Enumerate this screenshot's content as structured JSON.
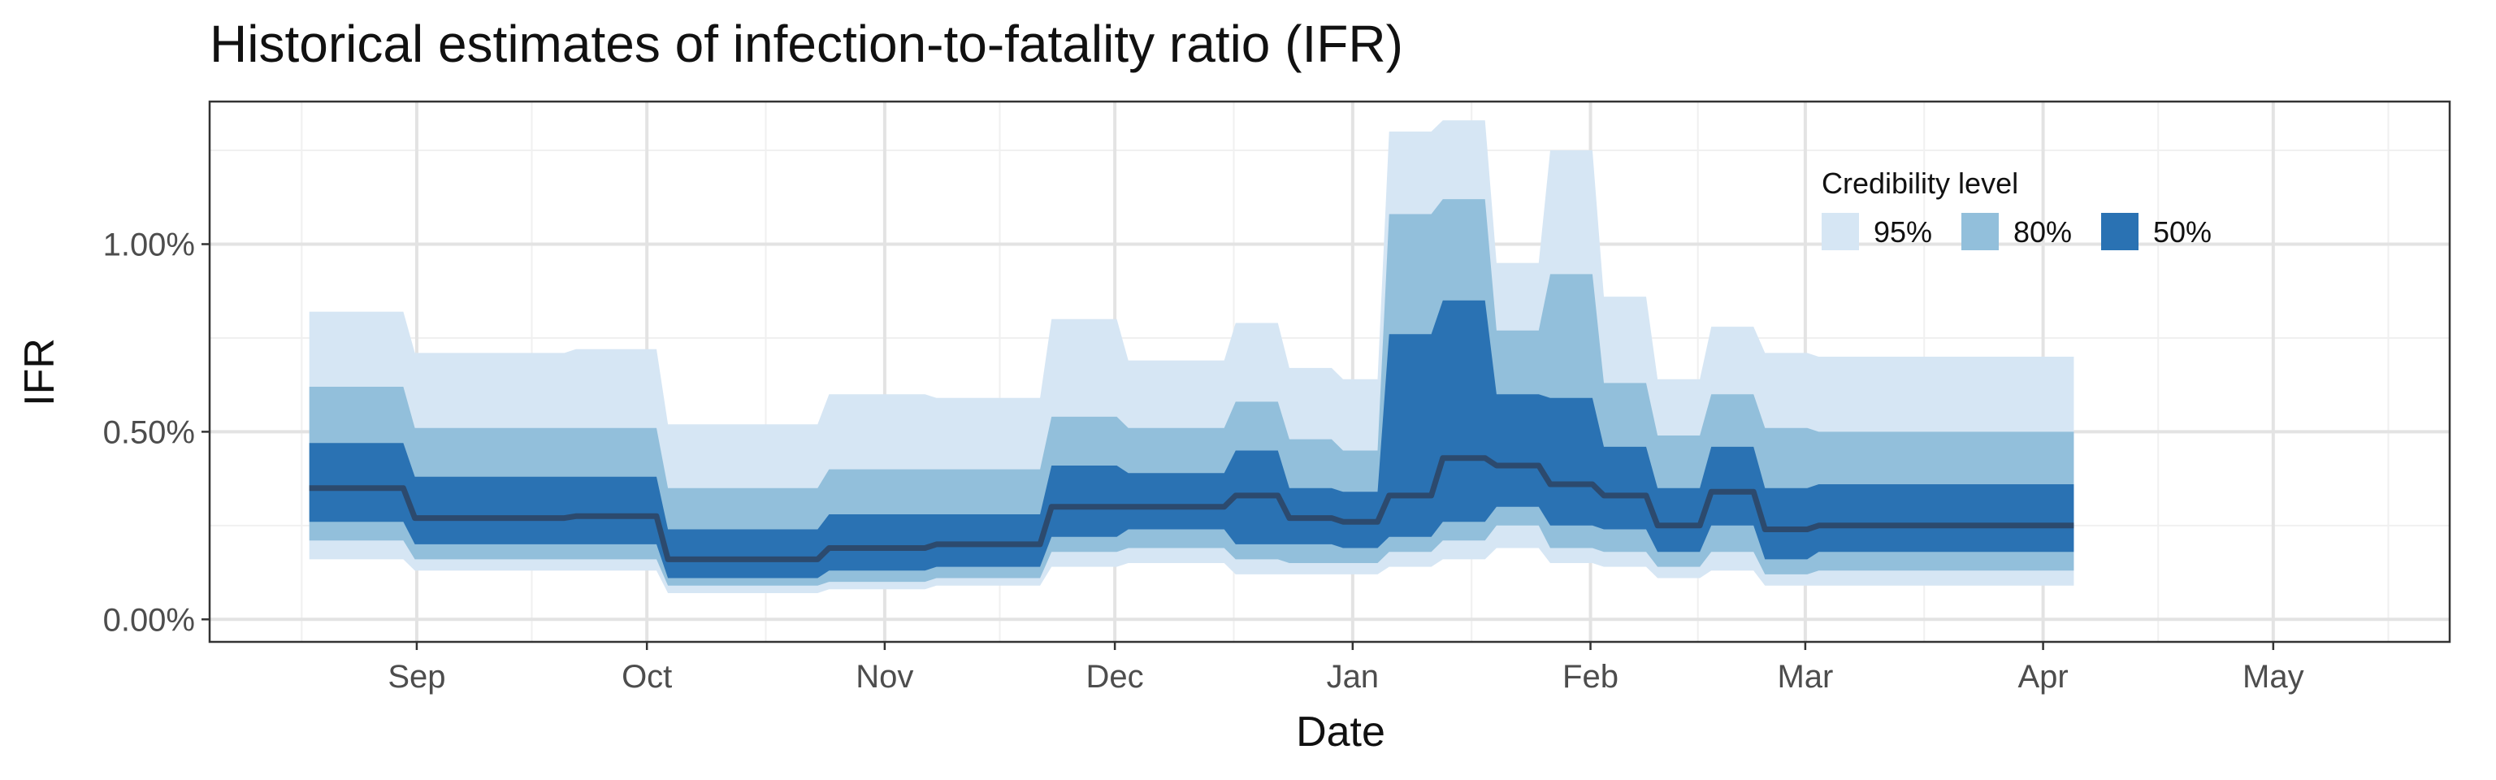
{
  "chart_data": {
    "type": "area",
    "title": "Historical estimates of infection-to-fatality ratio (IFR)",
    "xlabel": "Date",
    "ylabel": "IFR",
    "x_range": [
      "2020-08-05",
      "2021-05-24"
    ],
    "ylim": [
      -0.0006,
      0.0138
    ],
    "y_ticks": [
      {
        "value": 0.0,
        "label": "0.00%"
      },
      {
        "value": 0.005,
        "label": "0.50%"
      },
      {
        "value": 0.01,
        "label": "1.00%"
      }
    ],
    "x_ticks": [
      {
        "date": "2020-09-01",
        "label": "Sep"
      },
      {
        "date": "2020-10-01",
        "label": "Oct"
      },
      {
        "date": "2020-11-01",
        "label": "Nov"
      },
      {
        "date": "2020-12-01",
        "label": "Dec"
      },
      {
        "date": "2021-01-01",
        "label": "Jan"
      },
      {
        "date": "2021-02-01",
        "label": "Feb"
      },
      {
        "date": "2021-03-01",
        "label": "Mar"
      },
      {
        "date": "2021-04-01",
        "label": "Apr"
      },
      {
        "date": "2021-05-01",
        "label": "May"
      }
    ],
    "grid": true,
    "legend": {
      "title": "Credibility level",
      "placement": "top-right",
      "items": [
        {
          "label": "95%",
          "color": "#d6e6f4"
        },
        {
          "label": "80%",
          "color": "#92bfdb"
        },
        {
          "label": "50%",
          "color": "#2a72b3"
        }
      ]
    },
    "colors": {
      "median_line": "#2c4a6e",
      "panel_border": "#333333",
      "grid_major": "#e3e3e3",
      "grid_minor": "#f0f0f0"
    },
    "series": [
      {
        "date": "2020-08-18",
        "lo95": 0.0016,
        "lo80": 0.0021,
        "lo50": 0.0026,
        "median": 0.0035,
        "hi50": 0.0047,
        "hi80": 0.0062,
        "hi95": 0.0082
      },
      {
        "date": "2020-08-31",
        "lo95": 0.0013,
        "lo80": 0.0016,
        "lo50": 0.002,
        "median": 0.0027,
        "hi50": 0.0038,
        "hi80": 0.0051,
        "hi95": 0.0071
      },
      {
        "date": "2020-09-21",
        "lo95": 0.0013,
        "lo80": 0.0016,
        "lo50": 0.002,
        "median": 0.00275,
        "hi50": 0.0038,
        "hi80": 0.0051,
        "hi95": 0.0072
      },
      {
        "date": "2020-10-03",
        "lo95": 0.0007,
        "lo80": 0.0009,
        "lo50": 0.0011,
        "median": 0.0016,
        "hi50": 0.0024,
        "hi80": 0.0035,
        "hi95": 0.0052
      },
      {
        "date": "2020-10-24",
        "lo95": 0.0008,
        "lo80": 0.001,
        "lo50": 0.0013,
        "median": 0.0019,
        "hi50": 0.0028,
        "hi80": 0.004,
        "hi95": 0.006
      },
      {
        "date": "2020-11-07",
        "lo95": 0.0009,
        "lo80": 0.0011,
        "lo50": 0.0014,
        "median": 0.002,
        "hi50": 0.0028,
        "hi80": 0.004,
        "hi95": 0.0059
      },
      {
        "date": "2020-11-22",
        "lo95": 0.0014,
        "lo80": 0.0018,
        "lo50": 0.0022,
        "median": 0.003,
        "hi50": 0.0041,
        "hi80": 0.0054,
        "hi95": 0.008
      },
      {
        "date": "2020-12-02",
        "lo95": 0.0015,
        "lo80": 0.0019,
        "lo50": 0.0024,
        "median": 0.003,
        "hi50": 0.0039,
        "hi80": 0.0051,
        "hi95": 0.0069
      },
      {
        "date": "2020-12-16",
        "lo95": 0.0012,
        "lo80": 0.0016,
        "lo50": 0.002,
        "median": 0.0033,
        "hi50": 0.0045,
        "hi80": 0.0058,
        "hi95": 0.0079
      },
      {
        "date": "2020-12-23",
        "lo95": 0.0012,
        "lo80": 0.0015,
        "lo50": 0.002,
        "median": 0.0027,
        "hi50": 0.0035,
        "hi80": 0.0048,
        "hi95": 0.0067
      },
      {
        "date": "2020-12-30",
        "lo95": 0.0012,
        "lo80": 0.0015,
        "lo50": 0.0019,
        "median": 0.0026,
        "hi50": 0.0034,
        "hi80": 0.0045,
        "hi95": 0.0064
      },
      {
        "date": "2021-01-05",
        "lo95": 0.0014,
        "lo80": 0.0018,
        "lo50": 0.0022,
        "median": 0.0033,
        "hi50": 0.0076,
        "hi80": 0.0108,
        "hi95": 0.013
      },
      {
        "date": "2021-01-12",
        "lo95": 0.0016,
        "lo80": 0.0021,
        "lo50": 0.0026,
        "median": 0.0043,
        "hi50": 0.0085,
        "hi80": 0.0112,
        "hi95": 0.0133
      },
      {
        "date": "2021-01-19",
        "lo95": 0.0019,
        "lo80": 0.0025,
        "lo50": 0.003,
        "median": 0.0041,
        "hi50": 0.006,
        "hi80": 0.0077,
        "hi95": 0.0095
      },
      {
        "date": "2021-01-26",
        "lo95": 0.0015,
        "lo80": 0.0019,
        "lo50": 0.0025,
        "median": 0.0036,
        "hi50": 0.0059,
        "hi80": 0.0092,
        "hi95": 0.0125
      },
      {
        "date": "2021-02-02",
        "lo95": 0.0014,
        "lo80": 0.0018,
        "lo50": 0.0024,
        "median": 0.0033,
        "hi50": 0.0046,
        "hi80": 0.0063,
        "hi95": 0.0086
      },
      {
        "date": "2021-02-09",
        "lo95": 0.0011,
        "lo80": 0.0014,
        "lo50": 0.0018,
        "median": 0.0025,
        "hi50": 0.0035,
        "hi80": 0.0049,
        "hi95": 0.0064
      },
      {
        "date": "2021-02-16",
        "lo95": 0.0013,
        "lo80": 0.0018,
        "lo50": 0.0025,
        "median": 0.0034,
        "hi50": 0.0046,
        "hi80": 0.006,
        "hi95": 0.0078
      },
      {
        "date": "2021-02-23",
        "lo95": 0.0009,
        "lo80": 0.0012,
        "lo50": 0.0016,
        "median": 0.0024,
        "hi50": 0.0035,
        "hi80": 0.0051,
        "hi95": 0.0071
      },
      {
        "date": "2021-03-02",
        "lo95": 0.0009,
        "lo80": 0.0013,
        "lo50": 0.0018,
        "median": 0.0025,
        "hi50": 0.0036,
        "hi80": 0.005,
        "hi95": 0.007
      }
    ],
    "series_end": "2021-04-05"
  }
}
